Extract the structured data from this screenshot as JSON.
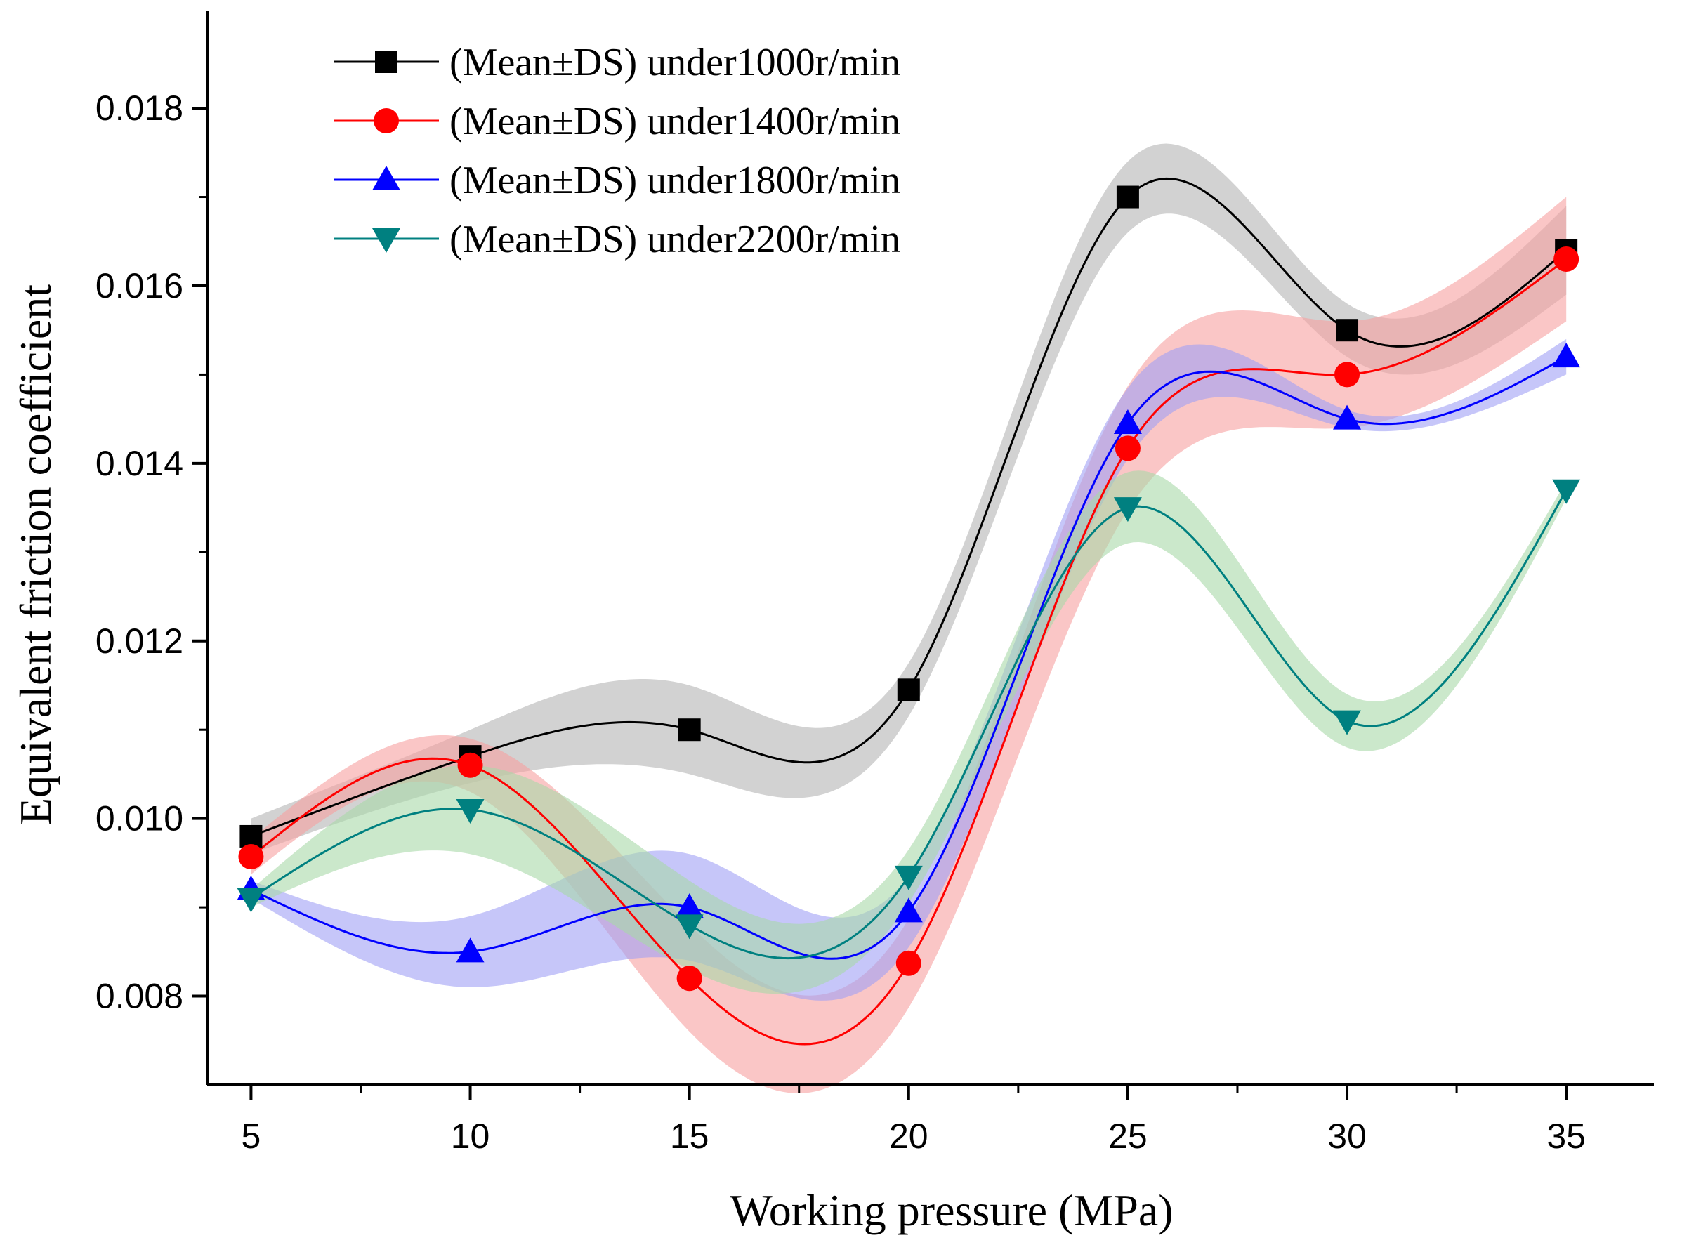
{
  "chart_data": {
    "type": "line",
    "title": "",
    "xlabel": "Working pressure (MPa)",
    "ylabel": "Equivalent friction coefficient",
    "x": [
      5,
      10,
      15,
      20,
      25,
      30,
      35
    ],
    "xlim": [
      4,
      37
    ],
    "ylim": [
      0.007,
      0.0191
    ],
    "xticks": [
      5,
      10,
      15,
      20,
      25,
      30,
      35
    ],
    "xtick_labels": [
      "5",
      "10",
      "15",
      "20",
      "25",
      "30",
      "35"
    ],
    "yticks": [
      0.008,
      0.01,
      0.012,
      0.014,
      0.016,
      0.018
    ],
    "ytick_labels": [
      "0.008",
      "0.010",
      "0.012",
      "0.014",
      "0.016",
      "0.018"
    ],
    "legend_position": "top-left",
    "series": [
      {
        "name": "(Mean±DS) under1000r/min",
        "marker": "square",
        "color": "#000000",
        "band_color": "#b4b4b4",
        "values": [
          0.0098,
          0.0107,
          0.011,
          0.01145,
          0.017,
          0.0155,
          0.0164
        ],
        "band": [
          0.0002,
          0.0003,
          0.0005,
          0.0003,
          0.0004,
          0.0003,
          0.0005
        ]
      },
      {
        "name": "(Mean±DS) under1400r/min",
        "marker": "circle",
        "color": "#ff0000",
        "band_color": "#f7a0a0",
        "values": [
          0.00957,
          0.0106,
          0.0082,
          0.00837,
          0.01417,
          0.015,
          0.0163
        ],
        "band": [
          0.0002,
          0.0003,
          0.0006,
          0.0005,
          0.0007,
          0.0006,
          0.0007
        ]
      },
      {
        "name": "(Mean±DS) under1800r/min",
        "marker": "triangle-up",
        "color": "#0000ff",
        "band_color": "#a0a0f5",
        "values": [
          0.0092,
          0.0085,
          0.009,
          0.00895,
          0.01445,
          0.0145,
          0.0152
        ],
        "band": [
          0.0001,
          0.0004,
          0.0006,
          0.0004,
          0.0004,
          0.0001,
          0.0002
        ]
      },
      {
        "name": "(Mean±DS) under2200r/min",
        "marker": "triangle-down",
        "color": "#008080",
        "band_color": "#a8d8a8",
        "values": [
          0.0091,
          0.0101,
          0.0088,
          0.00935,
          0.0135,
          0.0111,
          0.0137
        ],
        "band": [
          0.0001,
          0.0005,
          0.0005,
          0.0003,
          0.0004,
          0.0003,
          0.0001
        ]
      }
    ]
  }
}
